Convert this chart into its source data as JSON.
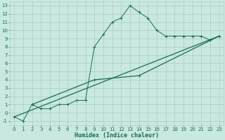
{
  "background_color": "#c8e8e0",
  "grid_color": "#b0d0c8",
  "line_color": "#1a6b5a",
  "xlabel": "Humidex (Indice chaleur)",
  "xlim": [
    -0.5,
    23.5
  ],
  "ylim": [
    -1.5,
    13.5
  ],
  "yticks": [
    -1,
    0,
    1,
    2,
    3,
    4,
    5,
    6,
    7,
    8,
    9,
    10,
    11,
    12,
    13
  ],
  "xticks": [
    0,
    1,
    2,
    3,
    4,
    5,
    6,
    7,
    8,
    9,
    10,
    11,
    12,
    13,
    14,
    15,
    16,
    17,
    18,
    19,
    20,
    21,
    22,
    23
  ],
  "line1_x": [
    0,
    1,
    2,
    3,
    4,
    5,
    6,
    7,
    8,
    9,
    10,
    11,
    12,
    13,
    14,
    15,
    16,
    17,
    18,
    19,
    20,
    21,
    22,
    23
  ],
  "line1_y": [
    -0.5,
    -1.0,
    1.0,
    0.5,
    0.5,
    1.0,
    1.0,
    1.5,
    1.5,
    8.0,
    9.5,
    11.0,
    11.5,
    13.0,
    12.2,
    11.5,
    10.0,
    9.3,
    9.3,
    9.3,
    9.3,
    9.3,
    8.8,
    9.3
  ],
  "line2_x": [
    0,
    23
  ],
  "line2_y": [
    -0.5,
    9.3
  ],
  "line3_x": [
    2,
    9,
    14,
    23
  ],
  "line3_y": [
    1.0,
    4.0,
    4.5,
    9.3
  ],
  "xlabel_fontsize": 6,
  "tick_fontsize": 5
}
